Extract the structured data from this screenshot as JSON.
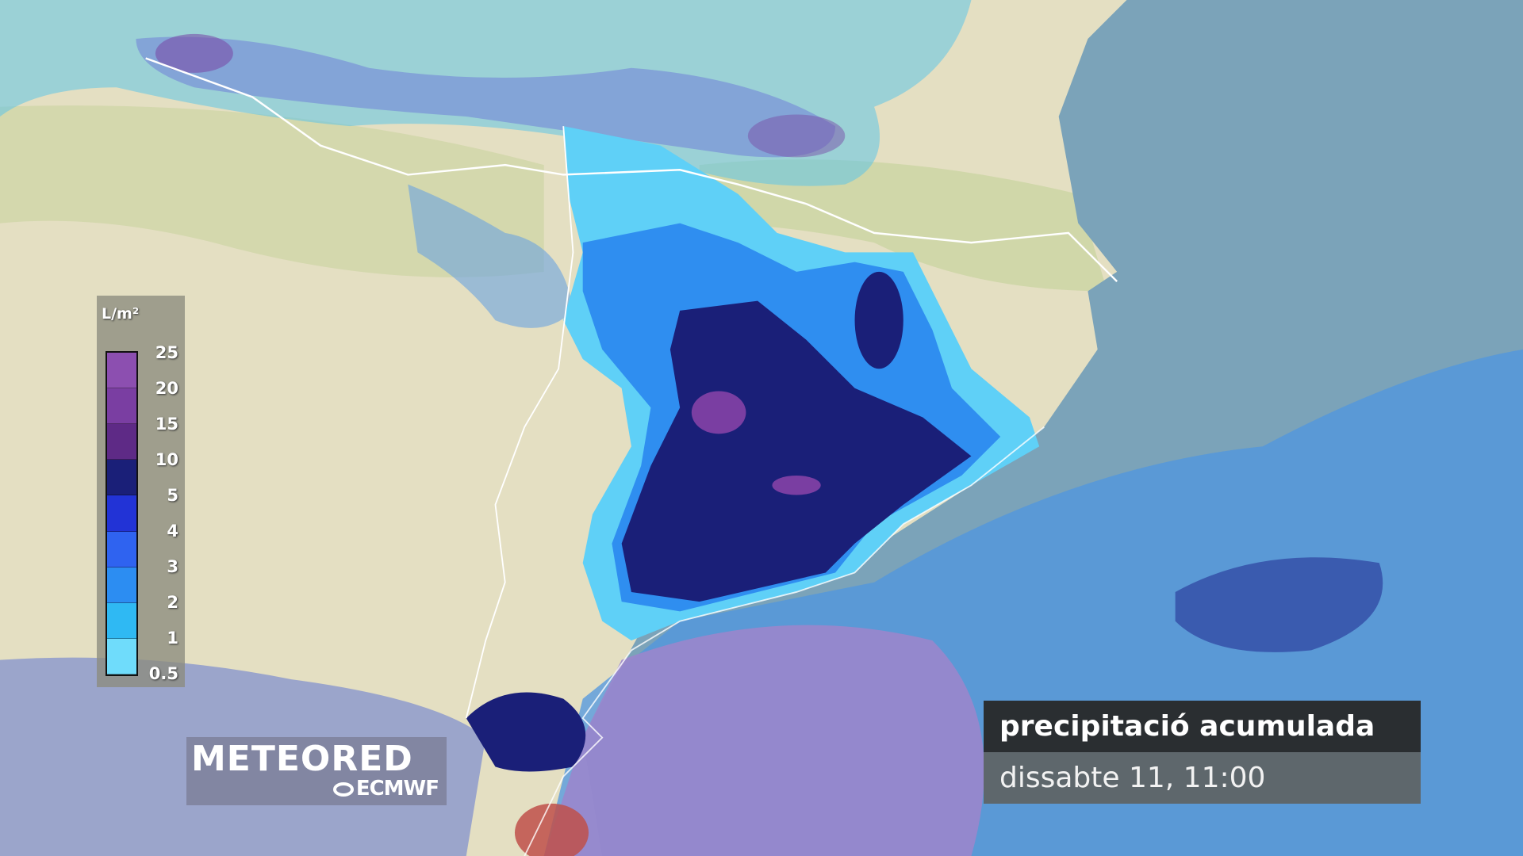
{
  "legend": {
    "unit": "L/m²",
    "labels": [
      "25",
      "20",
      "15",
      "10",
      "5",
      "4",
      "3",
      "2",
      "1",
      "0.5"
    ],
    "colors": [
      "#8c4fb0",
      "#7a3ea2",
      "#5e2a86",
      "#1a1f78",
      "#2233d6",
      "#2f63f0",
      "#2c8df2",
      "#2fb9f3",
      "#6fdcfb"
    ]
  },
  "logo": {
    "brand": "METEORED",
    "provider": "ECMWF"
  },
  "title": {
    "line1": "precipitació acumulada",
    "line2": "dissabte 11, 11:00"
  },
  "colors": {
    "land": "#e4dfc2",
    "sea": "#7ba3b9",
    "border": "#ffffff"
  }
}
